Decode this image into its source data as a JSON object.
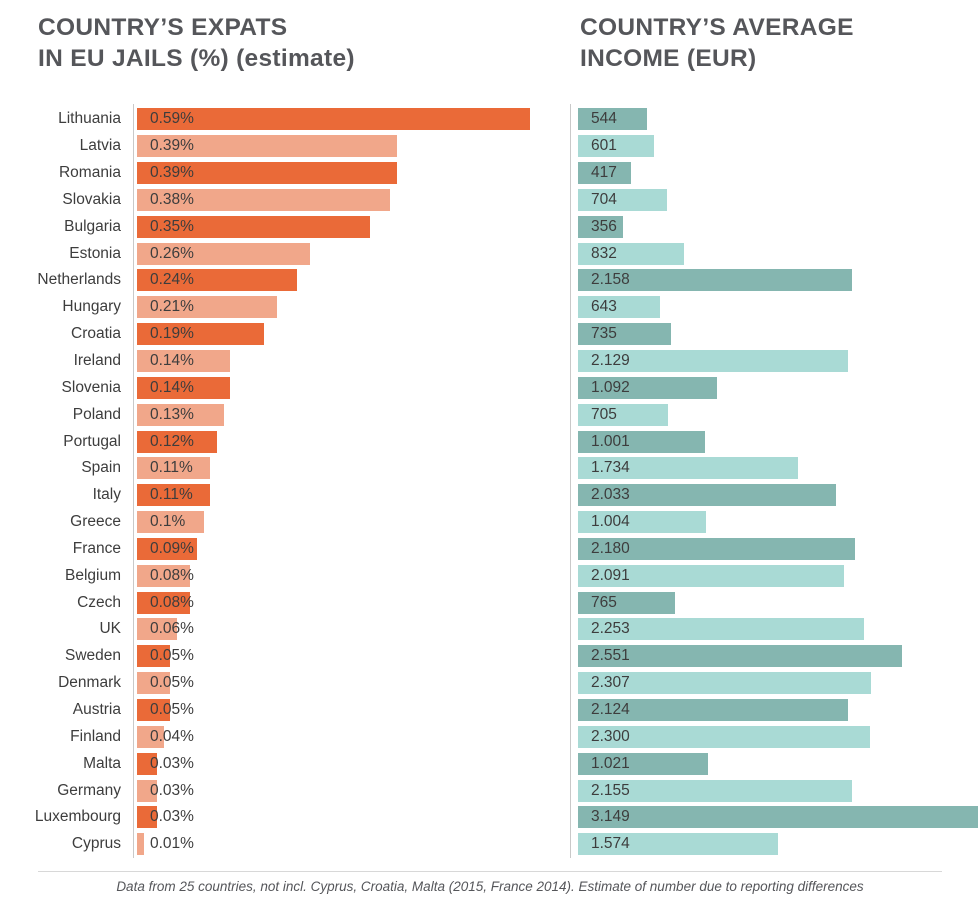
{
  "left_chart": {
    "title_line1": "COUNTRY’S EXPATS",
    "title_line2": "IN EU JAILS (%) (estimate)"
  },
  "right_chart": {
    "title_line1": "COUNTRY’S AVERAGE",
    "title_line2": "INCOME (EUR)"
  },
  "footer": {
    "note": "Data from 25 countries, not incl. Cyprus, Croatia, Malta (2015, France 2014). Estimate of number due to reporting differences"
  },
  "colors": {
    "orange_dark": "#ea6a38",
    "orange_light": "#f1a78a",
    "teal_dark": "#85b6b0",
    "teal_light": "#a9dad5",
    "title_text": "#55565a",
    "label_text": "#3d3d3d",
    "axis_line": "#c9c9c9"
  },
  "chart_data": [
    {
      "type": "bar",
      "orientation": "horizontal",
      "title": "COUNTRY’S EXPATS IN EU JAILS (%) (estimate)",
      "categories": [
        "Lithuania",
        "Latvia",
        "Romania",
        "Slovakia",
        "Bulgaria",
        "Estonia",
        "Netherlands",
        "Hungary",
        "Croatia",
        "Ireland",
        "Slovenia",
        "Poland",
        "Portugal",
        "Spain",
        "Italy",
        "Greece",
        "France",
        "Belgium",
        "Czech",
        "UK",
        "Sweden",
        "Denmark",
        "Austria",
        "Finland",
        "Malta",
        "Germany",
        "Luxembourg",
        "Cyprus"
      ],
      "values": [
        0.59,
        0.39,
        0.39,
        0.38,
        0.35,
        0.26,
        0.24,
        0.21,
        0.19,
        0.14,
        0.14,
        0.13,
        0.12,
        0.11,
        0.11,
        0.1,
        0.09,
        0.08,
        0.08,
        0.06,
        0.05,
        0.05,
        0.05,
        0.04,
        0.03,
        0.03,
        0.03,
        0.01
      ],
      "value_labels": [
        "0.59%",
        "0.39%",
        "0.39%",
        "0.38%",
        "0.35%",
        "0.26%",
        "0.24%",
        "0.21%",
        "0.19%",
        "0.14%",
        "0.14%",
        "0.13%",
        "0.12%",
        "0.11%",
        "0.11%",
        "0.1%",
        "0.09%",
        "0.08%",
        "0.08%",
        "0.06%",
        "0.05%",
        "0.05%",
        "0.05%",
        "0.04%",
        "0.03%",
        "0.03%",
        "0.03%",
        "0.01%"
      ],
      "xlim": [
        0,
        0.59
      ],
      "grid": false,
      "legend": false,
      "bar_color_pattern": "alternating dark/light orange by row"
    },
    {
      "type": "bar",
      "orientation": "horizontal",
      "title": "COUNTRY’S AVERAGE INCOME (EUR)",
      "categories": [
        "Lithuania",
        "Latvia",
        "Romania",
        "Slovakia",
        "Bulgaria",
        "Estonia",
        "Netherlands",
        "Hungary",
        "Croatia",
        "Ireland",
        "Slovenia",
        "Poland",
        "Portugal",
        "Spain",
        "Italy",
        "Greece",
        "France",
        "Belgium",
        "Czech",
        "UK",
        "Sweden",
        "Denmark",
        "Austria",
        "Finland",
        "Malta",
        "Germany",
        "Luxembourg",
        "Cyprus"
      ],
      "values": [
        544,
        601,
        417,
        704,
        356,
        832,
        2158,
        643,
        735,
        2129,
        1092,
        705,
        1001,
        1734,
        2033,
        1004,
        2180,
        2091,
        765,
        2253,
        2551,
        2307,
        2124,
        2300,
        1021,
        2155,
        3149,
        1574
      ],
      "value_labels": [
        "544",
        "601",
        "417",
        "704",
        "356",
        "832",
        "2.158",
        "643",
        "735",
        "2.129",
        "1.092",
        "705",
        "1.001",
        "1.734",
        "2.033",
        "1.004",
        "2.180",
        "2.091",
        "765",
        "2.253",
        "2.551",
        "2.307",
        "2.124",
        "2.300",
        "1.021",
        "2.155",
        "3.149",
        "1.574"
      ],
      "xlim": [
        0,
        3149
      ],
      "grid": false,
      "legend": false,
      "bar_color_pattern": "alternating dark/light teal by row"
    }
  ]
}
